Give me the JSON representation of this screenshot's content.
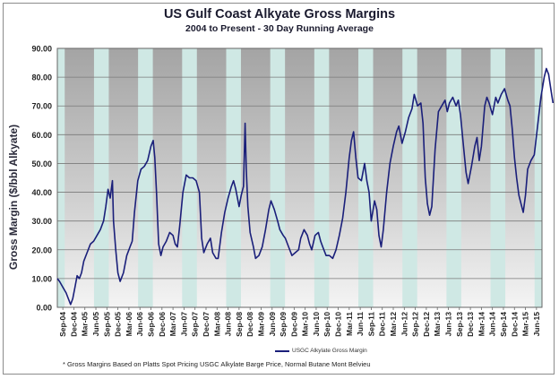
{
  "chart_data": {
    "type": "line",
    "title": "US Gulf Coast Alkyate Gross Margins",
    "subtitle": "2004 to Present - 30 Day Running Average",
    "ylabel": "Gross Margin ($/bbl Alkyate)",
    "xlabel": "",
    "ylim": [
      0,
      90
    ],
    "yticks": [
      "0.00",
      "10.00",
      "20.00",
      "30.00",
      "40.00",
      "50.00",
      "60.00",
      "70.00",
      "80.00",
      "90.00"
    ],
    "x_tick_labels": [
      "Sep-04",
      "Dec-04",
      "Mar-05",
      "Jun-05",
      "Sep-05",
      "Dec-05",
      "Mar-06",
      "Jun-06",
      "Sep-06",
      "Dec-06",
      "Mar-07",
      "Jun-07",
      "Sep-07",
      "Dec-07",
      "Mar-08",
      "Jun-08",
      "Sep-08",
      "Dec-08",
      "Mar-09",
      "Jun-09",
      "Sep-09",
      "Dec-09",
      "Mar-10",
      "Jun-10",
      "Sep-10",
      "Dec-10",
      "Mar-11",
      "Jun-11",
      "Sep-11",
      "Dec-11",
      "Mar-12",
      "Jun-12",
      "Sep-12",
      "Dec-12",
      "Mar-13",
      "Jun-13",
      "Sep-13",
      "Dec-13",
      "Mar-14",
      "Jun-14",
      "Sep-14",
      "Dec-14",
      "Mar-15",
      "Jun-15"
    ],
    "legend": "USGC Alkylate Gross Margin",
    "legend_position": "bottom",
    "background_bands": "alternating teal (summer Apr-Sep) and gray gradient (winter Oct-Mar)",
    "grid": true,
    "colors": {
      "line": "#1a1f7a",
      "band_light": "#cfe8e4",
      "band_dark": "#a6a6a6",
      "grid": "#7a7a7a"
    },
    "series": [
      {
        "name": "USGC Alkylate Gross Margin",
        "points": [
          [
            0.0,
            10
          ],
          [
            0.2,
            9
          ],
          [
            0.5,
            7
          ],
          [
            0.8,
            5
          ],
          [
            1.0,
            3
          ],
          [
            1.2,
            1
          ],
          [
            1.4,
            3
          ],
          [
            1.6,
            7
          ],
          [
            1.8,
            11
          ],
          [
            2.0,
            10
          ],
          [
            2.2,
            12
          ],
          [
            2.4,
            16
          ],
          [
            2.7,
            19
          ],
          [
            3.0,
            22
          ],
          [
            3.3,
            23
          ],
          [
            3.6,
            25
          ],
          [
            3.9,
            27
          ],
          [
            4.2,
            30
          ],
          [
            4.4,
            35
          ],
          [
            4.6,
            41
          ],
          [
            4.8,
            38
          ],
          [
            5.0,
            44
          ],
          [
            5.1,
            30
          ],
          [
            5.3,
            20
          ],
          [
            5.5,
            12
          ],
          [
            5.7,
            9
          ],
          [
            6.0,
            12
          ],
          [
            6.3,
            18
          ],
          [
            6.6,
            21
          ],
          [
            6.8,
            23
          ],
          [
            7.0,
            33
          ],
          [
            7.3,
            44
          ],
          [
            7.6,
            48
          ],
          [
            7.9,
            49
          ],
          [
            8.2,
            51
          ],
          [
            8.5,
            56
          ],
          [
            8.7,
            58
          ],
          [
            8.85,
            52
          ],
          [
            9.0,
            40
          ],
          [
            9.2,
            22
          ],
          [
            9.4,
            18
          ],
          [
            9.6,
            21
          ],
          [
            9.9,
            23
          ],
          [
            10.2,
            26
          ],
          [
            10.5,
            25
          ],
          [
            10.7,
            22
          ],
          [
            10.9,
            21
          ],
          [
            11.1,
            28
          ],
          [
            11.4,
            40
          ],
          [
            11.7,
            46
          ],
          [
            12.0,
            45
          ],
          [
            12.3,
            45
          ],
          [
            12.6,
            44
          ],
          [
            12.9,
            40
          ],
          [
            13.1,
            24
          ],
          [
            13.3,
            19
          ],
          [
            13.6,
            22
          ],
          [
            13.9,
            24
          ],
          [
            14.1,
            19
          ],
          [
            14.4,
            17
          ],
          [
            14.6,
            17
          ],
          [
            14.9,
            26
          ],
          [
            15.2,
            33
          ],
          [
            15.5,
            38
          ],
          [
            15.8,
            42
          ],
          [
            16.0,
            44
          ],
          [
            16.2,
            41
          ],
          [
            16.5,
            35
          ],
          [
            16.7,
            39
          ],
          [
            16.9,
            42
          ],
          [
            17.05,
            64
          ],
          [
            17.15,
            48
          ],
          [
            17.3,
            35
          ],
          [
            17.5,
            26
          ],
          [
            17.8,
            21
          ],
          [
            18.0,
            17
          ],
          [
            18.3,
            18
          ],
          [
            18.6,
            21
          ],
          [
            18.9,
            27
          ],
          [
            19.2,
            34
          ],
          [
            19.4,
            37
          ],
          [
            19.7,
            34
          ],
          [
            20.0,
            30
          ],
          [
            20.2,
            27
          ],
          [
            20.5,
            25
          ],
          [
            20.7,
            24
          ],
          [
            21.0,
            21
          ],
          [
            21.3,
            18
          ],
          [
            21.6,
            19
          ],
          [
            21.9,
            20
          ],
          [
            22.1,
            24
          ],
          [
            22.4,
            27
          ],
          [
            22.7,
            25
          ],
          [
            22.9,
            22
          ],
          [
            23.1,
            20
          ],
          [
            23.4,
            25
          ],
          [
            23.7,
            26
          ],
          [
            23.9,
            23
          ],
          [
            24.1,
            21
          ],
          [
            24.4,
            18
          ],
          [
            24.7,
            18
          ],
          [
            25.0,
            17
          ],
          [
            25.3,
            20
          ],
          [
            25.6,
            25
          ],
          [
            25.9,
            31
          ],
          [
            26.2,
            40
          ],
          [
            26.5,
            52
          ],
          [
            26.7,
            58
          ],
          [
            26.9,
            61
          ],
          [
            27.1,
            52
          ],
          [
            27.3,
            45
          ],
          [
            27.6,
            44
          ],
          [
            27.9,
            50
          ],
          [
            28.1,
            44
          ],
          [
            28.3,
            40
          ],
          [
            28.5,
            30
          ],
          [
            28.8,
            37
          ],
          [
            29.0,
            34
          ],
          [
            29.2,
            25
          ],
          [
            29.4,
            21
          ],
          [
            29.6,
            27
          ],
          [
            29.9,
            40
          ],
          [
            30.2,
            50
          ],
          [
            30.5,
            56
          ],
          [
            30.8,
            61
          ],
          [
            31.0,
            63
          ],
          [
            31.3,
            57
          ],
          [
            31.6,
            61
          ],
          [
            31.9,
            66
          ],
          [
            32.2,
            69
          ],
          [
            32.4,
            74
          ],
          [
            32.7,
            70
          ],
          [
            33.0,
            71
          ],
          [
            33.2,
            64
          ],
          [
            33.4,
            45
          ],
          [
            33.6,
            36
          ],
          [
            33.8,
            32
          ],
          [
            34.0,
            35
          ],
          [
            34.3,
            55
          ],
          [
            34.6,
            68
          ],
          [
            34.9,
            70
          ],
          [
            35.2,
            72
          ],
          [
            35.4,
            68
          ],
          [
            35.6,
            71
          ],
          [
            35.9,
            73
          ],
          [
            36.2,
            70
          ],
          [
            36.4,
            72
          ],
          [
            36.6,
            67
          ],
          [
            36.9,
            55
          ],
          [
            37.1,
            47
          ],
          [
            37.3,
            43
          ],
          [
            37.6,
            49
          ],
          [
            37.9,
            56
          ],
          [
            38.1,
            59
          ],
          [
            38.3,
            51
          ],
          [
            38.5,
            56
          ],
          [
            38.8,
            70
          ],
          [
            39.0,
            73
          ],
          [
            39.2,
            71
          ],
          [
            39.5,
            67
          ],
          [
            39.8,
            73
          ],
          [
            40.0,
            71
          ],
          [
            40.3,
            74
          ],
          [
            40.6,
            76
          ],
          [
            40.9,
            72
          ],
          [
            41.1,
            70
          ],
          [
            41.3,
            62
          ],
          [
            41.5,
            52
          ],
          [
            41.7,
            45
          ],
          [
            41.9,
            39
          ],
          [
            42.1,
            36
          ],
          [
            42.3,
            33
          ],
          [
            42.5,
            39
          ],
          [
            42.7,
            48
          ],
          [
            43.0,
            51
          ],
          [
            43.3,
            53
          ],
          [
            43.6,
            63
          ],
          [
            43.9,
            73
          ],
          [
            44.2,
            80
          ],
          [
            44.4,
            83
          ],
          [
            44.6,
            81
          ],
          [
            44.8,
            76
          ],
          [
            45.0,
            71
          ]
        ]
      }
    ]
  },
  "footnote": "* Gross Margins Based on Platts Spot Pricing USGC Alkylate Barge Price, Normal Butane Mont Belvieu"
}
